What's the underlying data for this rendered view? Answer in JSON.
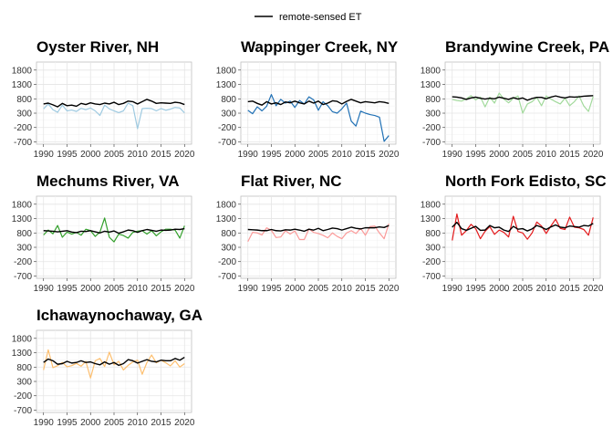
{
  "legend": {
    "label": "remote-sensed ET",
    "color": "#000000"
  },
  "chart_data": {
    "type": "line",
    "x": [
      1990,
      1991,
      1992,
      1993,
      1994,
      1995,
      1996,
      1997,
      1998,
      1999,
      2000,
      2001,
      2002,
      2003,
      2004,
      2005,
      2006,
      2007,
      2008,
      2009,
      2010,
      2011,
      2012,
      2013,
      2014,
      2015,
      2016,
      2017,
      2018,
      2019,
      2020
    ],
    "xticks": [
      1990,
      1995,
      2000,
      2005,
      2010,
      2015,
      2020
    ],
    "yticks": [
      -700,
      -200,
      300,
      800,
      1300,
      1800
    ],
    "ylim": [
      -780,
      2080
    ],
    "xlim": [
      1988.5,
      2021.5
    ],
    "grid": true,
    "legend_position": "top",
    "panels": [
      {
        "title": "Oyster River, NH",
        "color": "#9ecae1",
        "remote_sensed": [
          620,
          650,
          590,
          520,
          640,
          560,
          580,
          540,
          640,
          600,
          660,
          620,
          600,
          650,
          620,
          680,
          600,
          640,
          720,
          700,
          620,
          700,
          780,
          720,
          640,
          660,
          650,
          640,
          680,
          660,
          600
        ],
        "series": [
          450,
          620,
          420,
          330,
          580,
          380,
          410,
          360,
          470,
          420,
          480,
          380,
          220,
          580,
          450,
          380,
          320,
          380,
          650,
          560,
          -240,
          460,
          470,
          460,
          380,
          460,
          400,
          440,
          500,
          480,
          310
        ]
      },
      {
        "title": "Wappinger Creek, NY",
        "color": "#2171b5",
        "remote_sensed": [
          700,
          720,
          640,
          580,
          700,
          620,
          660,
          600,
          690,
          660,
          720,
          660,
          620,
          720,
          650,
          720,
          600,
          650,
          730,
          710,
          620,
          710,
          780,
          720,
          660,
          700,
          680,
          660,
          700,
          680,
          640
        ],
        "series": [
          400,
          280,
          520,
          380,
          540,
          950,
          560,
          780,
          650,
          720,
          500,
          740,
          620,
          870,
          760,
          400,
          700,
          560,
          350,
          300,
          450,
          650,
          20,
          -150,
          370,
          300,
          250,
          220,
          160,
          -680,
          -480
        ]
      },
      {
        "title": "Brandywine Creek, PA",
        "color": "#a1d99b",
        "remote_sensed": [
          870,
          860,
          830,
          780,
          830,
          860,
          820,
          790,
          820,
          800,
          860,
          820,
          780,
          840,
          790,
          830,
          750,
          810,
          850,
          850,
          800,
          860,
          900,
          860,
          830,
          870,
          860,
          870,
          890,
          900,
          910
        ],
        "series": [
          780,
          740,
          720,
          800,
          910,
          760,
          860,
          520,
          860,
          650,
          1000,
          790,
          660,
          820,
          900,
          300,
          620,
          700,
          850,
          560,
          900,
          790,
          700,
          620,
          820,
          560,
          700,
          900,
          550,
          360,
          880
        ]
      },
      {
        "title": "Mechums River, VA",
        "color": "#33a02c",
        "remote_sensed": [
          880,
          870,
          860,
          840,
          860,
          880,
          830,
          810,
          860,
          850,
          880,
          840,
          800,
          860,
          830,
          870,
          790,
          840,
          900,
          880,
          820,
          880,
          920,
          890,
          860,
          900,
          890,
          900,
          930,
          920,
          950
        ],
        "series": [
          730,
          900,
          770,
          1060,
          650,
          830,
          760,
          820,
          720,
          930,
          880,
          680,
          830,
          1320,
          650,
          490,
          760,
          710,
          620,
          820,
          860,
          880,
          760,
          880,
          700,
          840,
          930,
          930,
          900,
          620,
          1050
        ]
      },
      {
        "title": "Flat River, NC",
        "color": "#fb9a99",
        "remote_sensed": [
          920,
          910,
          900,
          880,
          880,
          920,
          880,
          870,
          910,
          900,
          930,
          900,
          860,
          930,
          900,
          960,
          880,
          920,
          970,
          950,
          900,
          950,
          1000,
          960,
          940,
          980,
          980,
          980,
          1010,
          990,
          1060
        ],
        "series": [
          500,
          820,
          800,
          730,
          980,
          890,
          640,
          660,
          880,
          760,
          870,
          570,
          570,
          940,
          820,
          780,
          720,
          630,
          800,
          680,
          600,
          800,
          880,
          780,
          960,
          720,
          1020,
          1040,
          800,
          600,
          1120
        ]
      },
      {
        "title": "North Fork Edisto, SC",
        "color": "#e31a1c",
        "remote_sensed": [
          1000,
          1170,
          950,
          890,
          960,
          1030,
          890,
          900,
          1060,
          980,
          1000,
          900,
          850,
          1030,
          930,
          950,
          870,
          940,
          1060,
          1000,
          920,
          1010,
          1080,
          1000,
          980,
          1040,
          1020,
          1000,
          1060,
          1040,
          1130
        ],
        "series": [
          540,
          1460,
          720,
          880,
          1100,
          950,
          600,
          860,
          1020,
          750,
          900,
          820,
          660,
          1380,
          850,
          800,
          580,
          800,
          1180,
          1040,
          780,
          1040,
          1280,
          960,
          920,
          1350,
          1000,
          980,
          920,
          720,
          1340
        ]
      },
      {
        "title": "Ichawaynochaway, GA",
        "color": "#fdbf6f",
        "remote_sensed": [
          960,
          1080,
          1020,
          900,
          920,
          1000,
          940,
          960,
          1020,
          960,
          980,
          920,
          880,
          980,
          900,
          960,
          860,
          920,
          1060,
          1020,
          940,
          1000,
          1060,
          1000,
          980,
          1040,
          1020,
          1020,
          1100,
          1040,
          1140
        ],
        "series": [
          700,
          1400,
          780,
          850,
          960,
          810,
          850,
          930,
          830,
          1000,
          420,
          1020,
          1100,
          820,
          1320,
          880,
          1000,
          700,
          860,
          980,
          1040,
          550,
          960,
          1220,
          950,
          1040,
          950,
          840,
          1020,
          800,
          920
        ]
      }
    ]
  }
}
